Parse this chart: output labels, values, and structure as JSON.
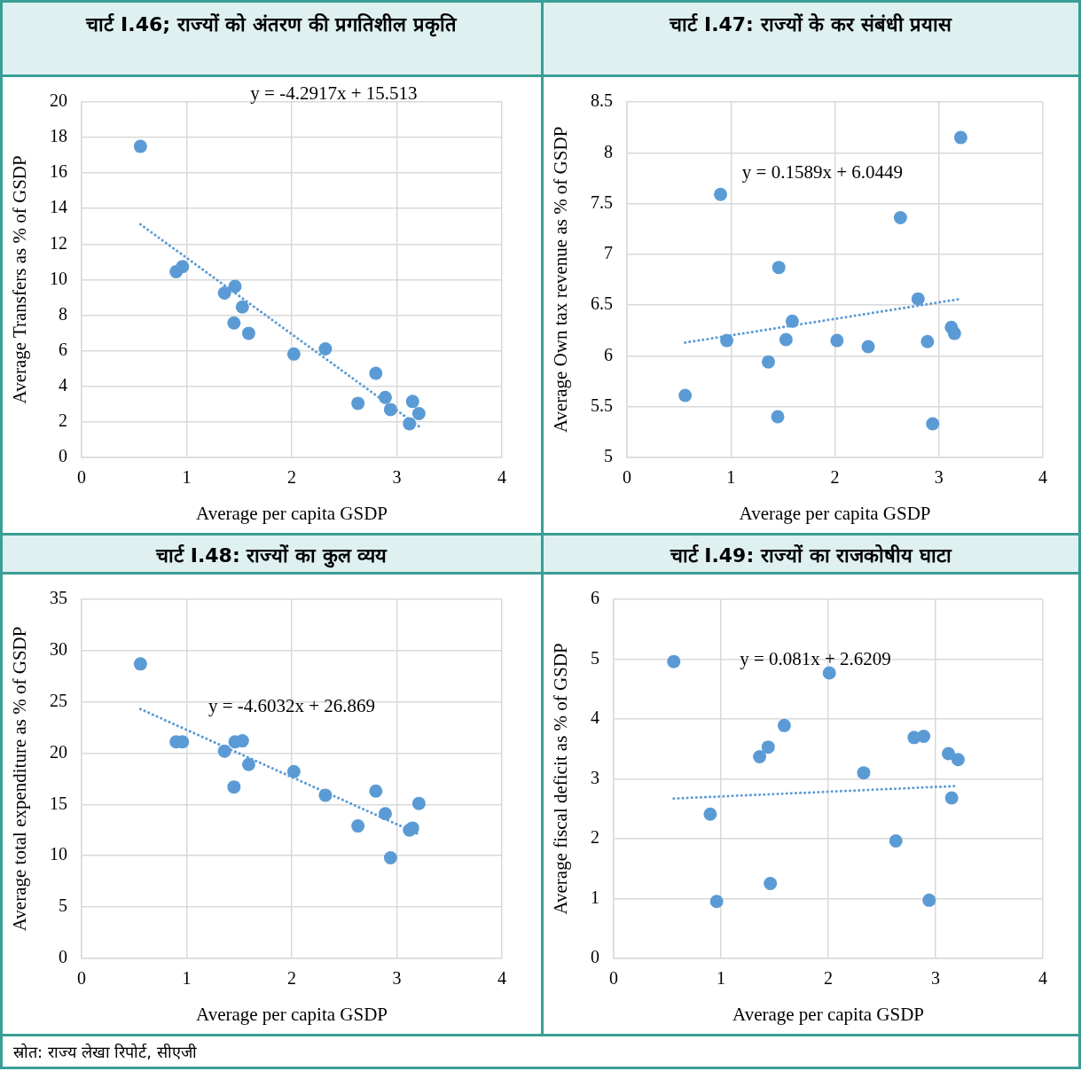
{
  "chart_data": [
    {
      "type": "scatter",
      "title": "चार्ट I.46; राज्यों को अंतरण की प्रगतिशील प्रकृति",
      "xlabel": "Average per capita GSDP",
      "ylabel": "Average Transfers as % of GSDP",
      "xlim": [
        0,
        4
      ],
      "xticks": [
        0,
        1,
        2,
        3,
        4
      ],
      "ylim": [
        0,
        20
      ],
      "yticks": [
        0,
        2,
        4,
        6,
        8,
        10,
        12,
        14,
        16,
        18,
        20
      ],
      "grid": true,
      "legend": false,
      "series": [
        {
          "type": "scatter",
          "marker": "circle",
          "color": "#5b9bd5",
          "x": [
            0.56,
            0.9,
            0.96,
            1.36,
            1.45,
            1.46,
            1.53,
            1.59,
            2.02,
            2.32,
            2.63,
            2.8,
            2.89,
            2.94,
            3.12,
            3.15,
            3.21
          ],
          "values": [
            17.5,
            10.45,
            10.73,
            9.25,
            7.56,
            9.62,
            8.46,
            6.98,
            5.81,
            6.1,
            3.04,
            4.73,
            3.37,
            2.69,
            1.89,
            3.14,
            2.46
          ]
        },
        {
          "type": "line",
          "marker": "none",
          "line_style": "dotted",
          "color": "#5b9bd5",
          "x": [
            0.56,
            3.21
          ],
          "values": [
            13.11,
            1.74
          ]
        }
      ],
      "annotations": [
        "y = -4.2917x + 15.513"
      ]
    },
    {
      "type": "scatter",
      "title": "चार्ट I.47: राज्यों के कर संबंधी प्रयास",
      "xlabel": "Average per capita GSDP",
      "ylabel": "Average Own tax revenue as % of GSDP",
      "xlim": [
        0,
        4
      ],
      "xticks": [
        0,
        1,
        2,
        3,
        4
      ],
      "ylim": [
        5,
        8.5
      ],
      "yticks": [
        5,
        5.5,
        6,
        6.5,
        7,
        7.5,
        8,
        8.5
      ],
      "grid": true,
      "legend": false,
      "series": [
        {
          "type": "scatter",
          "marker": "circle",
          "color": "#5b9bd5",
          "x": [
            0.56,
            0.9,
            0.96,
            1.36,
            1.45,
            1.46,
            1.53,
            1.59,
            2.02,
            2.32,
            2.63,
            2.8,
            2.89,
            2.94,
            3.12,
            3.15,
            3.21
          ],
          "values": [
            5.61,
            7.59,
            6.15,
            5.94,
            5.4,
            6.87,
            6.16,
            6.34,
            6.15,
            6.09,
            7.36,
            6.56,
            6.14,
            5.33,
            6.28,
            6.22,
            8.15
          ]
        },
        {
          "type": "line",
          "marker": "none",
          "line_style": "dotted",
          "color": "#5b9bd5",
          "x": [
            0.56,
            3.21
          ],
          "values": [
            6.13,
            6.56
          ]
        }
      ],
      "annotations": [
        "y = 0.1589x + 6.0449"
      ]
    },
    {
      "type": "scatter",
      "title": "चार्ट I.48: राज्यों का कुल व्यय",
      "xlabel": "Average per capita GSDP",
      "ylabel": "Average total expenditure as % of GSDP",
      "xlim": [
        0,
        4
      ],
      "xticks": [
        0,
        1,
        2,
        3,
        4
      ],
      "ylim": [
        0,
        35
      ],
      "yticks": [
        0,
        5,
        10,
        15,
        20,
        25,
        30,
        35
      ],
      "grid": true,
      "legend": false,
      "series": [
        {
          "type": "scatter",
          "marker": "circle",
          "color": "#5b9bd5",
          "x": [
            0.56,
            0.9,
            0.96,
            1.36,
            1.45,
            1.46,
            1.53,
            1.59,
            2.02,
            2.32,
            2.63,
            2.8,
            2.89,
            2.94,
            3.12,
            3.15,
            3.21
          ],
          "values": [
            28.7,
            21.1,
            21.1,
            20.2,
            16.7,
            21.1,
            21.2,
            18.9,
            18.2,
            15.9,
            12.9,
            16.3,
            14.1,
            9.8,
            12.5,
            12.7,
            15.1
          ]
        },
        {
          "type": "line",
          "marker": "none",
          "line_style": "dotted",
          "color": "#5b9bd5",
          "x": [
            0.56,
            3.21
          ],
          "values": [
            24.3,
            12.1
          ]
        }
      ],
      "annotations": [
        "y = -4.6032x + 26.869"
      ]
    },
    {
      "type": "scatter",
      "title": "चार्ट I.49: राज्यों का राजकोषीय घाटा",
      "xlabel": "Average per capita GSDP",
      "ylabel": "Average fiscal deficit as % of GSDP",
      "xlim": [
        0,
        4
      ],
      "xticks": [
        0,
        1,
        2,
        3,
        4
      ],
      "ylim": [
        0,
        6
      ],
      "yticks": [
        0,
        1,
        2,
        3,
        4,
        5,
        6
      ],
      "grid": true,
      "legend": false,
      "series": [
        {
          "type": "scatter",
          "marker": "circle",
          "color": "#5b9bd5",
          "x": [
            0.56,
            0.9,
            0.96,
            1.36,
            1.44,
            1.46,
            1.59,
            2.01,
            2.33,
            2.63,
            2.8,
            2.89,
            2.94,
            3.12,
            3.15,
            3.21
          ],
          "values": [
            4.96,
            2.41,
            0.95,
            3.37,
            3.53,
            1.25,
            3.89,
            4.77,
            3.1,
            1.96,
            3.69,
            3.71,
            0.97,
            3.42,
            2.68,
            3.32
          ]
        },
        {
          "type": "line",
          "marker": "none",
          "line_style": "dotted",
          "color": "#5b9bd5",
          "x": [
            0.56,
            3.21
          ],
          "values": [
            2.67,
            2.88
          ]
        }
      ],
      "annotations": [
        "y = 0.081x + 2.6209",
        "स्रोत: राज्य लेखा रिपोर्ट, सीएजी"
      ]
    }
  ]
}
